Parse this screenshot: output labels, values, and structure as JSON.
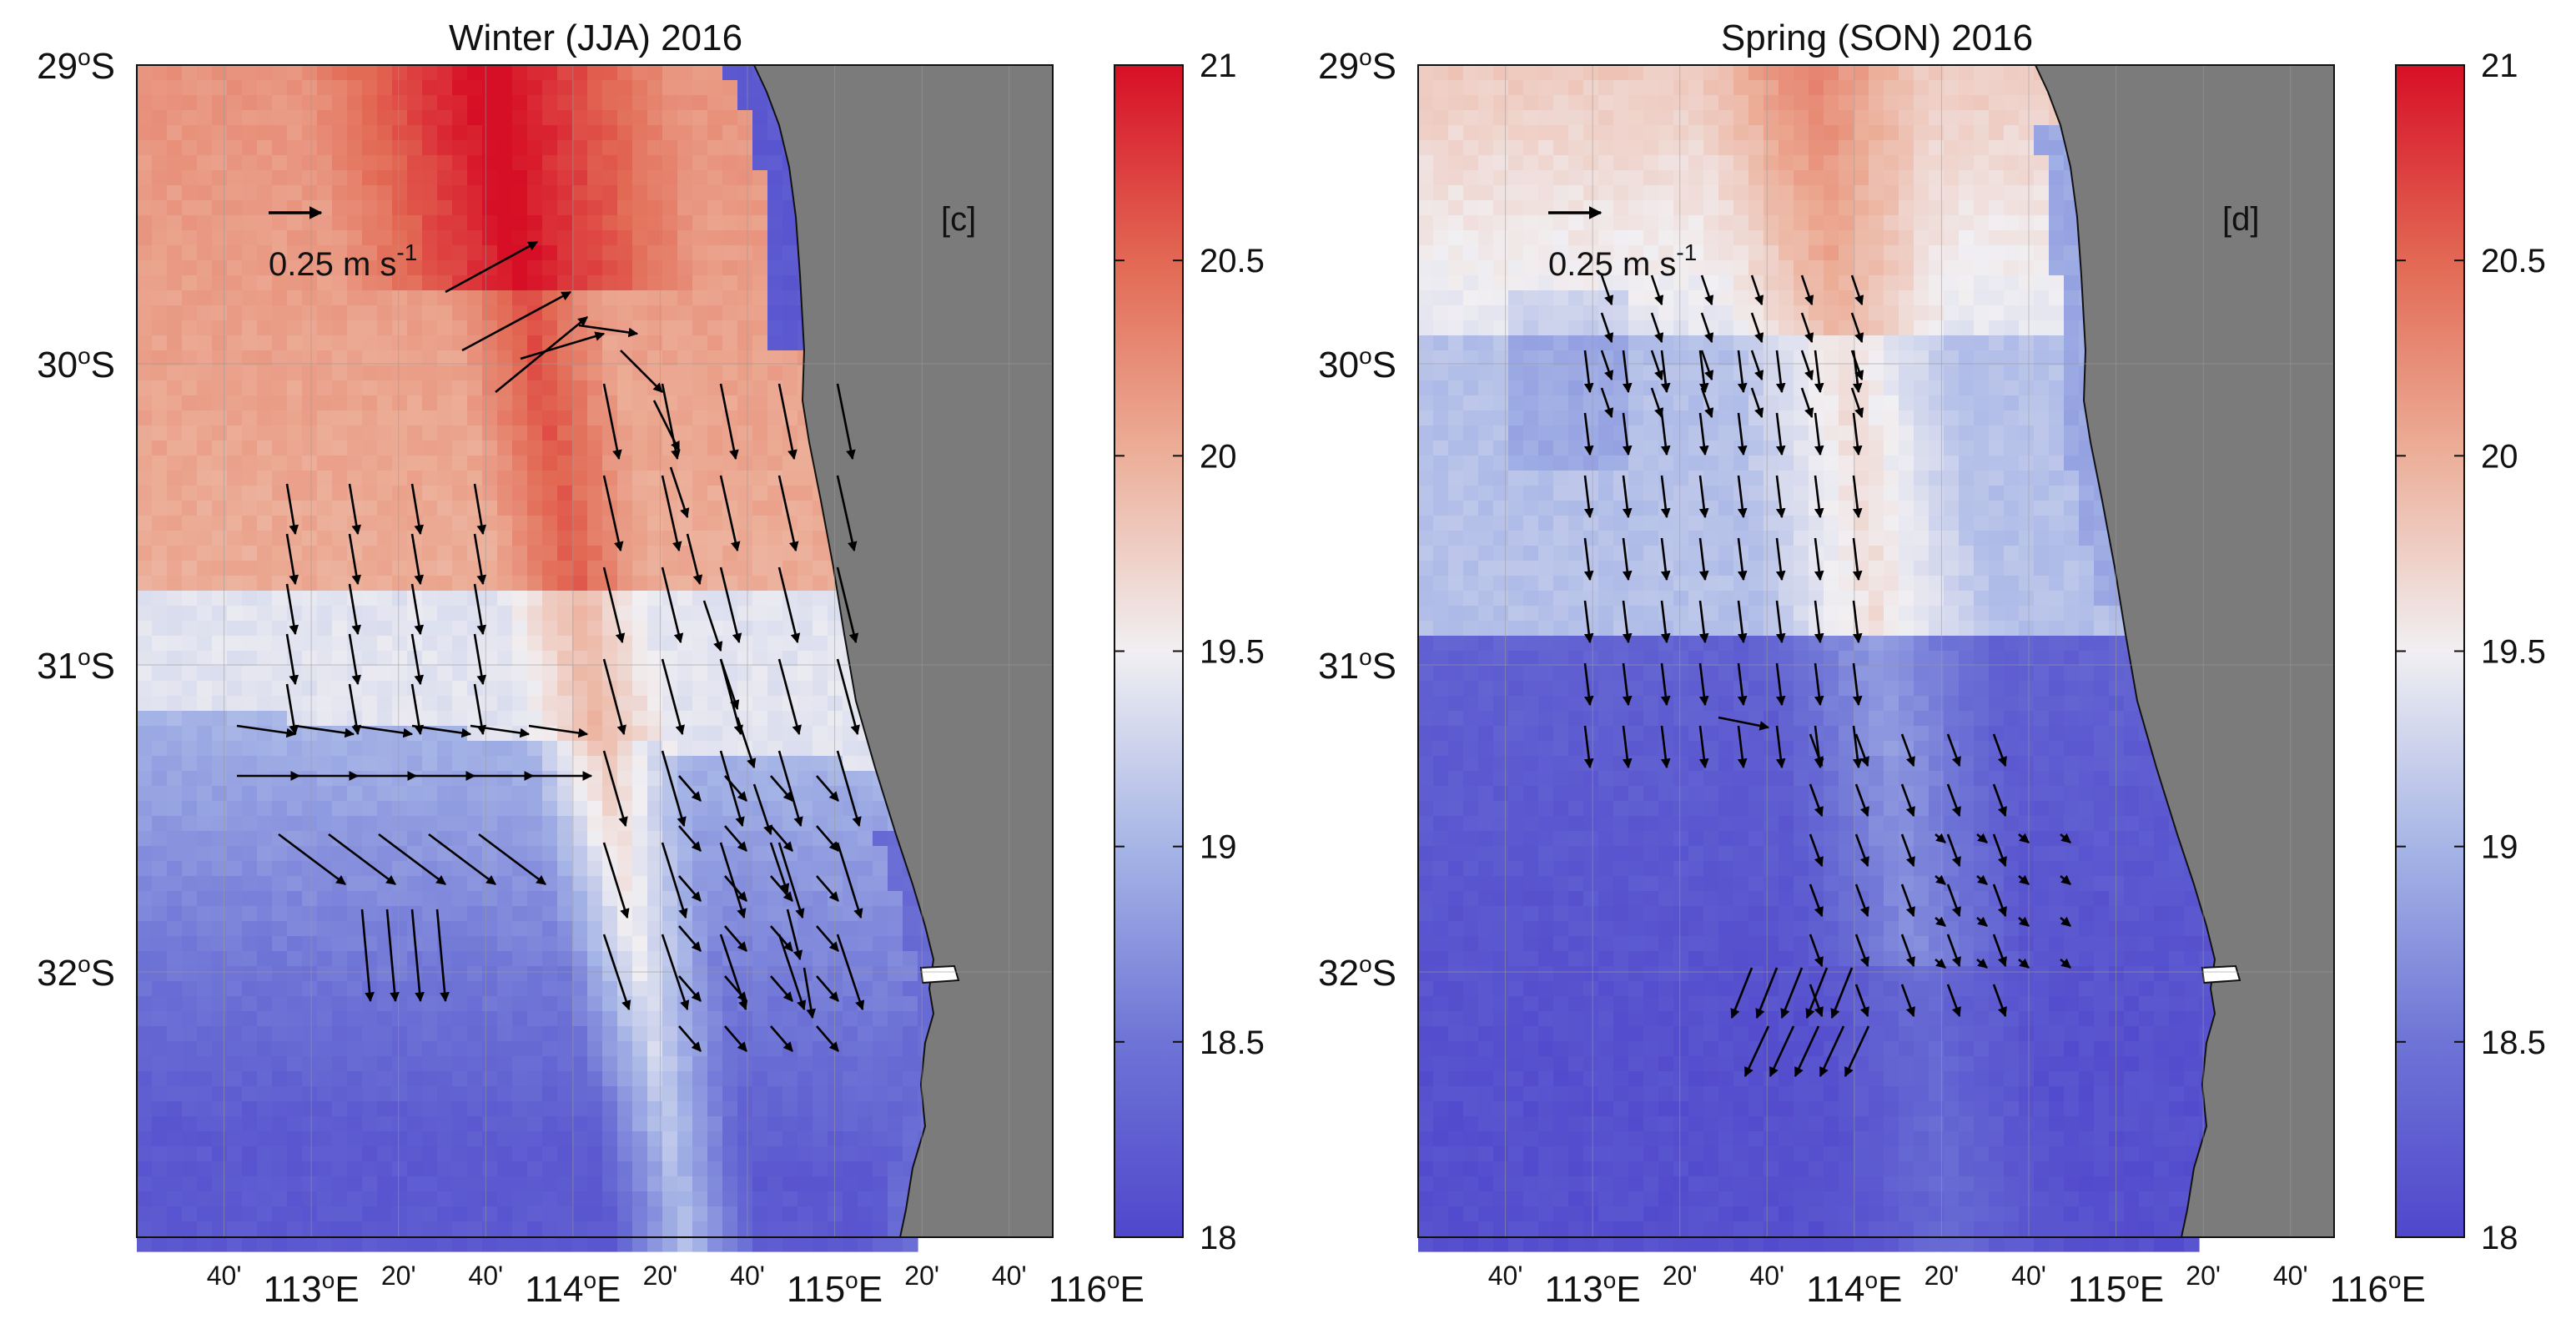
{
  "colors": {
    "cold": "#5047cc",
    "mid": "#f1eff2",
    "warm": "#d70f26",
    "land": "#7b7b7b",
    "grid": "#9a9a9a",
    "arrow": "#000000"
  },
  "scale_arrow": {
    "value_label": "0.25 m s",
    "exponent": "-1"
  },
  "latitudes": [
    {
      "deg": "29",
      "hemi": "S"
    },
    {
      "deg": "30",
      "hemi": "S"
    },
    {
      "deg": "31",
      "hemi": "S"
    },
    {
      "deg": "32",
      "hemi": "S"
    }
  ],
  "longitude_ticks": [
    {
      "text": "40'",
      "kind": "minor"
    },
    {
      "deg": "113",
      "hemi": "E",
      "kind": "major"
    },
    {
      "text": "20'",
      "kind": "minor"
    },
    {
      "text": "40'",
      "kind": "minor"
    },
    {
      "deg": "114",
      "hemi": "E",
      "kind": "major"
    },
    {
      "text": "20'",
      "kind": "minor"
    },
    {
      "text": "40'",
      "kind": "minor"
    },
    {
      "deg": "115",
      "hemi": "E",
      "kind": "major"
    },
    {
      "text": "20'",
      "kind": "minor"
    },
    {
      "text": "40'",
      "kind": "minor"
    },
    {
      "deg": "116",
      "hemi": "E",
      "kind": "major"
    }
  ],
  "colorbar": {
    "min": 18,
    "max": 21,
    "ticks": [
      "18",
      "18.5",
      "19",
      "19.5",
      "20",
      "20.5",
      "21"
    ]
  },
  "panels": [
    {
      "title": "Winter (JJA) 2016",
      "label": "[c]",
      "season": "winter"
    },
    {
      "title": "Spring (SON) 2016",
      "label": "[d]",
      "season": "spring"
    }
  ]
}
